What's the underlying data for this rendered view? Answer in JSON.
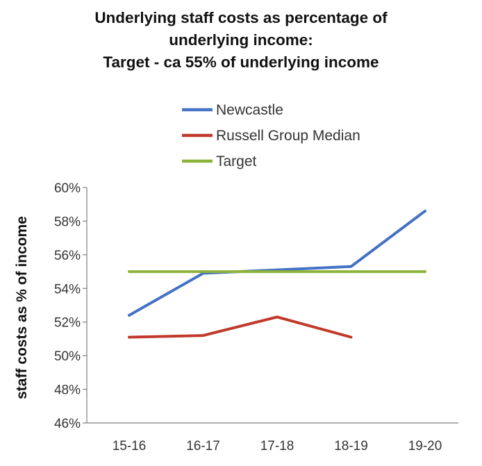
{
  "chart_data": {
    "type": "line",
    "title_lines": [
      "Underlying staff costs as percentage of",
      "underlying income:",
      "Target - ca 55% of underlying income"
    ],
    "xlabel": "",
    "ylabel": "staff costs as % of income",
    "categories": [
      "15-16",
      "16-17",
      "17-18",
      "18-19",
      "19-20"
    ],
    "ylim": [
      46,
      60
    ],
    "y_ticks": [
      60,
      58,
      56,
      54,
      52,
      50,
      48,
      46
    ],
    "y_tick_labels": [
      "60%",
      "58%",
      "56%",
      "54%",
      "52%",
      "50%",
      "48%",
      "46%"
    ],
    "grid": false,
    "legend_position": "top",
    "series": [
      {
        "name": "Newcastle",
        "color": "#4472c4",
        "values": [
          52.4,
          54.9,
          55.1,
          55.3,
          58.6
        ]
      },
      {
        "name": "Russell Group Median",
        "color": "#c0392b",
        "values": [
          51.1,
          51.2,
          52.3,
          51.1,
          null
        ]
      },
      {
        "name": "Target",
        "color": "#8db33a",
        "values": [
          55.0,
          55.0,
          55.0,
          55.0,
          55.0
        ]
      }
    ]
  }
}
